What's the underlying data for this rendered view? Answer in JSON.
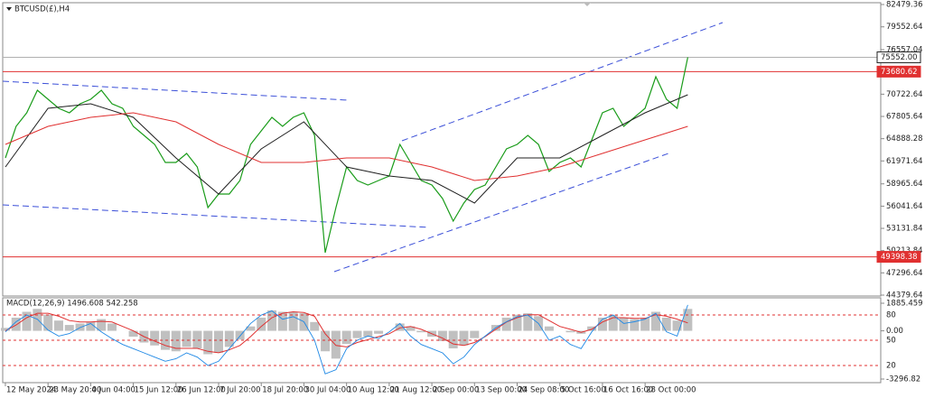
{
  "chart_data": [
    {
      "type": "line",
      "title": "BTCUSD(£),H4",
      "categories": [
        "12 May 2024",
        null,
        null,
        null,
        "23 May 20:00",
        null,
        null,
        null,
        "4 Jun 04:00",
        null,
        null,
        null,
        "15 Jun 12:00",
        null,
        null,
        null,
        "26 Jun 12:00",
        null,
        null,
        null,
        "7 Jul 20:00",
        null,
        null,
        null,
        "18 Jul 20:00",
        null,
        null,
        null,
        "30 Jul 04:00",
        null,
        null,
        null,
        "10 Aug 12:00",
        null,
        null,
        null,
        "21 Aug 12:00",
        null,
        null,
        null,
        "2 Sep 00:00",
        null,
        null,
        null,
        "13 Sep 00:00",
        null,
        null,
        null,
        "24 Sep 08:00",
        null,
        null,
        null,
        "5 Oct 16:00",
        null,
        null,
        null,
        "16 Oct 16:00",
        null,
        null,
        null,
        "28 Oct 00:00",
        null,
        null,
        null,
        null
      ],
      "xlim": [
        -0.25,
        82.1
      ],
      "series": [
        {
          "color": "#1a9c1a",
          "values": [
            62365,
            66506,
            68281,
            71239,
            70056,
            68873,
            68281,
            69464,
            70056,
            71239,
            69464,
            68873,
            66506,
            65323,
            64139,
            61773,
            61773,
            62956,
            61182,
            55857,
            57632,
            57632,
            59407,
            64139,
            65914,
            67689,
            66506,
            67689,
            68281,
            65323,
            49941,
            55857,
            61182,
            59407,
            58815,
            59407,
            59998,
            64139,
            61773,
            59407,
            58815,
            57040,
            54082,
            56449,
            58224,
            58815,
            61182,
            63548,
            64139,
            65323,
            64139,
            60590,
            61773,
            62365,
            61182,
            64731,
            68281,
            68873,
            66506,
            67689,
            68873,
            73013,
            70056,
            68873,
            75552
          ]
        },
        {
          "color": "#202020",
          "x": [
            0,
            4,
            8,
            12,
            16,
            20,
            24,
            28,
            32,
            36,
            40,
            44,
            48,
            52,
            56,
            60,
            64
          ],
          "values": [
            61182,
            68873,
            69464,
            67689,
            62365,
            57632,
            63548,
            67098,
            61182,
            59998,
            59407,
            56449,
            62365,
            62365,
            65323,
            68281,
            70647
          ]
        },
        {
          "color": "#e03030",
          "x": [
            0,
            4,
            8,
            12,
            16,
            20,
            24,
            28,
            32,
            36,
            40,
            44,
            48,
            52,
            56,
            60,
            64
          ],
          "values": [
            64139,
            66506,
            67689,
            68281,
            67098,
            64139,
            61773,
            61773,
            62365,
            62365,
            61182,
            59407,
            59998,
            61182,
            62956,
            64731,
            66506
          ]
        }
      ],
      "ylim": [
        44379.64,
        82479.36
      ],
      "yticks": [
        82479.36,
        79552.64,
        76557.04,
        70722.64,
        67805.64,
        64888.28,
        61971.64,
        58965.64,
        56041.64,
        53131.84,
        50213.84,
        47296.64,
        44379.64
      ],
      "levels": [
        {
          "value": 75552,
          "label": "75552.00",
          "color": "#b0b0b0"
        },
        {
          "value": 73680.62,
          "color": "#e03030"
        },
        {
          "value": 49398.38,
          "color": "#e03030"
        }
      ]
    },
    {
      "type": "macd",
      "title": "MACD(12,26,9) 1496.608 542.258",
      "ylim": [
        -3296.82,
        1885.459
      ],
      "yticks": [
        1885.459,
        {
          "value": 0,
          "label": "0.00"
        },
        -3296.82
      ],
      "series": [
        {
          "type": "bar",
          "color": "#c0c0c0",
          "values": [
            200,
            900,
            1300,
            1500,
            1100,
            700,
            400,
            500,
            600,
            800,
            500,
            0,
            -400,
            -800,
            -1000,
            -1300,
            -1400,
            -1100,
            -1200,
            -1600,
            -1500,
            -1100,
            -600,
            300,
            900,
            1400,
            1300,
            1300,
            1200,
            600,
            -1400,
            -1900,
            -900,
            -500,
            -400,
            -200,
            0,
            500,
            300,
            -100,
            -400,
            -700,
            -1200,
            -1000,
            -500,
            0,
            400,
            900,
            1100,
            1200,
            1000,
            300,
            0,
            -100,
            -200,
            300,
            900,
            1100,
            900,
            800,
            900,
            1300,
            900,
            700,
            1496.608
          ]
        },
        {
          "type": "line",
          "color": "#e03030",
          "values": [
            0,
            400,
            900,
            1200,
            1200,
            1000,
            700,
            600,
            600,
            650,
            600,
            300,
            0,
            -400,
            -700,
            -1000,
            -1200,
            -1200,
            -1200,
            -1400,
            -1500,
            -1300,
            -1000,
            -400,
            300,
            900,
            1200,
            1300,
            1250,
            1000,
            -200,
            -1000,
            -1100,
            -800,
            -600,
            -400,
            -200,
            200,
            300,
            100,
            -200,
            -500,
            -900,
            -1000,
            -800,
            -400,
            100,
            600,
            900,
            1100,
            1100,
            700,
            300,
            100,
            -100,
            100,
            600,
            900,
            900,
            850,
            850,
            1100,
            1000,
            800,
            542.258
          ]
        }
      ],
      "levels": {
        "lim": [
          3.9,
          94
        ],
        "ticks": [
          80,
          50,
          20
        ],
        "color": "#e03030",
        "series": {
          "color": "#1e88e5",
          "values": [
            60,
            72,
            80,
            75,
            62,
            55,
            58,
            65,
            70,
            60,
            52,
            45,
            40,
            35,
            30,
            25,
            28,
            35,
            30,
            20,
            25,
            40,
            55,
            70,
            80,
            85,
            75,
            78,
            72,
            50,
            10,
            15,
            40,
            50,
            55,
            52,
            60,
            70,
            55,
            45,
            40,
            35,
            22,
            30,
            45,
            55,
            65,
            72,
            78,
            80,
            70,
            50,
            55,
            45,
            40,
            60,
            75,
            80,
            70,
            72,
            75,
            82,
            60,
            55,
            92
          ]
        }
      }
    }
  ]
}
